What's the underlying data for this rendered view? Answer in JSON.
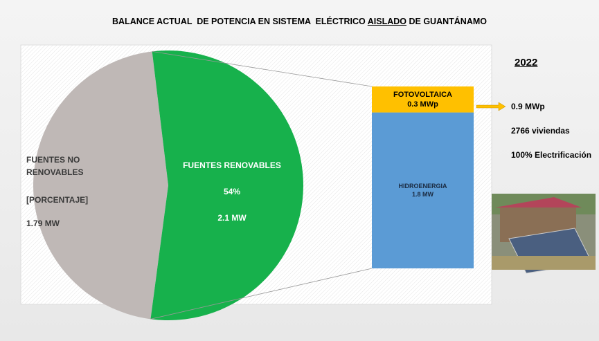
{
  "chart_data": [
    {
      "type": "pie",
      "title": [
        "BALANCE ACTUAL  DE POTENCIA EN SISTEMA  ELÉCTRICO ",
        "AISLADO",
        " DE GUANTÁNAMO"
      ],
      "categories": [
        "FUENTES NO RENOVABLES",
        "FUENTES RENOVABLES"
      ],
      "values": [
        46,
        54
      ],
      "value_labels": [
        "[PORCENTAJE]",
        "54%"
      ],
      "power": [
        1.79,
        2.1
      ],
      "power_labels": [
        "1.79 MW",
        "2.1 MW"
      ],
      "colors": [
        "#bfb8b6",
        "#17b14c"
      ]
    },
    {
      "type": "stacked-bar",
      "categories": [
        "HIDROENERGIA",
        "FOTOVOLTAICA"
      ],
      "values": [
        1.8,
        0.3
      ],
      "value_labels": [
        "1.8 MW",
        "0.3 MWp"
      ],
      "colors": [
        "#5b9bd5",
        "#ffc000"
      ]
    }
  ],
  "side": {
    "year": "2022",
    "items": [
      "0.9 MWp",
      "2766 viviendas",
      "100% Electrificación"
    ]
  }
}
